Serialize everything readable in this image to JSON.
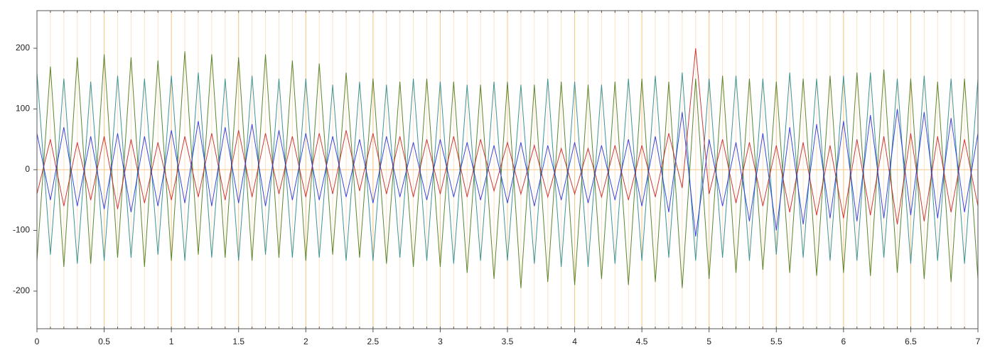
{
  "chart_data": {
    "type": "line",
    "x": [
      0,
      0.1,
      0.2,
      0.3,
      0.4,
      0.5,
      0.6,
      0.7,
      0.8,
      0.9,
      1,
      1.1,
      1.2,
      1.3,
      1.4,
      1.5,
      1.6,
      1.7,
      1.8,
      1.9,
      2,
      2.1,
      2.2,
      2.3,
      2.4,
      2.5,
      2.6,
      2.7,
      2.8,
      2.9,
      3,
      3.1,
      3.2,
      3.3,
      3.4,
      3.5,
      3.6,
      3.7,
      3.8,
      3.9,
      4,
      4.1,
      4.2,
      4.3,
      4.4,
      4.5,
      4.6,
      4.7,
      4.8,
      4.9,
      5,
      5.1,
      5.2,
      5.3,
      5.4,
      5.5,
      5.6,
      5.7,
      5.8,
      5.9,
      6,
      6.1,
      6.2,
      6.3,
      6.4,
      6.5,
      6.6,
      6.7,
      6.8,
      6.9,
      7
    ],
    "series": [
      {
        "color": "#2a8a8a",
        "values": [
          160,
          -140,
          150,
          -155,
          145,
          -150,
          155,
          -145,
          150,
          -140,
          155,
          -150,
          160,
          -145,
          150,
          -150,
          155,
          -140,
          150,
          -145,
          150,
          -145,
          140,
          -150,
          145,
          -150,
          140,
          -145,
          150,
          -150,
          145,
          -155,
          140,
          -150,
          145,
          -150,
          140,
          -155,
          150,
          -160,
          145,
          -160,
          140,
          -155,
          150,
          -150,
          155,
          -145,
          160,
          -150,
          150,
          -145,
          155,
          -150,
          150,
          -140,
          160,
          -145,
          150,
          -150,
          155,
          -150,
          160,
          -145,
          150,
          -155,
          155,
          -150,
          150,
          -155,
          150
        ]
      },
      {
        "color": "#4a7a1a",
        "values": [
          -150,
          170,
          -160,
          185,
          -155,
          190,
          -145,
          185,
          -160,
          180,
          -150,
          195,
          -140,
          190,
          -145,
          185,
          -150,
          190,
          -145,
          180,
          -150,
          175,
          -140,
          160,
          -145,
          150,
          -155,
          145,
          -160,
          150,
          -160,
          145,
          -170,
          140,
          -180,
          145,
          -195,
          140,
          -185,
          145,
          -190,
          140,
          -180,
          145,
          -190,
          150,
          -185,
          145,
          -195,
          150,
          -180,
          155,
          -170,
          150,
          -165,
          145,
          -170,
          150,
          -175,
          155,
          -170,
          160,
          -175,
          165,
          -170,
          150,
          -180,
          145,
          -185,
          150,
          -180
        ]
      },
      {
        "color": "#cc2222",
        "values": [
          -40,
          50,
          -60,
          45,
          -50,
          55,
          -65,
          50,
          -55,
          45,
          -50,
          55,
          -45,
          60,
          -50,
          65,
          -45,
          60,
          -40,
          55,
          -45,
          60,
          -40,
          65,
          -35,
          60,
          -40,
          55,
          -45,
          50,
          -40,
          55,
          -45,
          50,
          -35,
          45,
          -40,
          40,
          -45,
          35,
          -40,
          35,
          -45,
          40,
          -50,
          40,
          -45,
          60,
          -30,
          200,
          -40,
          50,
          -55,
          45,
          -60,
          40,
          -70,
          45,
          -75,
          40,
          -80,
          50,
          -75,
          55,
          -90,
          60,
          -85,
          55,
          -70,
          50,
          -60
        ]
      },
      {
        "color": "#2233dd",
        "values": [
          60,
          -50,
          70,
          -60,
          55,
          -65,
          60,
          -70,
          55,
          -60,
          65,
          -55,
          80,
          -60,
          70,
          -55,
          75,
          -60,
          65,
          -50,
          60,
          -50,
          55,
          -45,
          50,
          -55,
          55,
          -45,
          45,
          -50,
          50,
          -45,
          45,
          -50,
          40,
          -55,
          45,
          -60,
          40,
          -50,
          45,
          -55,
          40,
          -50,
          50,
          -60,
          55,
          -70,
          95,
          -110,
          50,
          -60,
          45,
          -85,
          60,
          -100,
          70,
          -90,
          75,
          -80,
          80,
          -85,
          90,
          -80,
          100,
          -75,
          95,
          -80,
          85,
          -70,
          60
        ]
      }
    ],
    "xlim": [
      0,
      7
    ],
    "xticks": [
      0,
      0.5,
      1,
      1.5,
      2,
      2.5,
      3,
      3.5,
      4,
      4.5,
      5,
      5.5,
      6,
      6.5,
      7
    ],
    "ylim": [
      -262,
      262
    ],
    "yticks": [
      -200,
      -100,
      0,
      100,
      200
    ],
    "grid": true
  }
}
